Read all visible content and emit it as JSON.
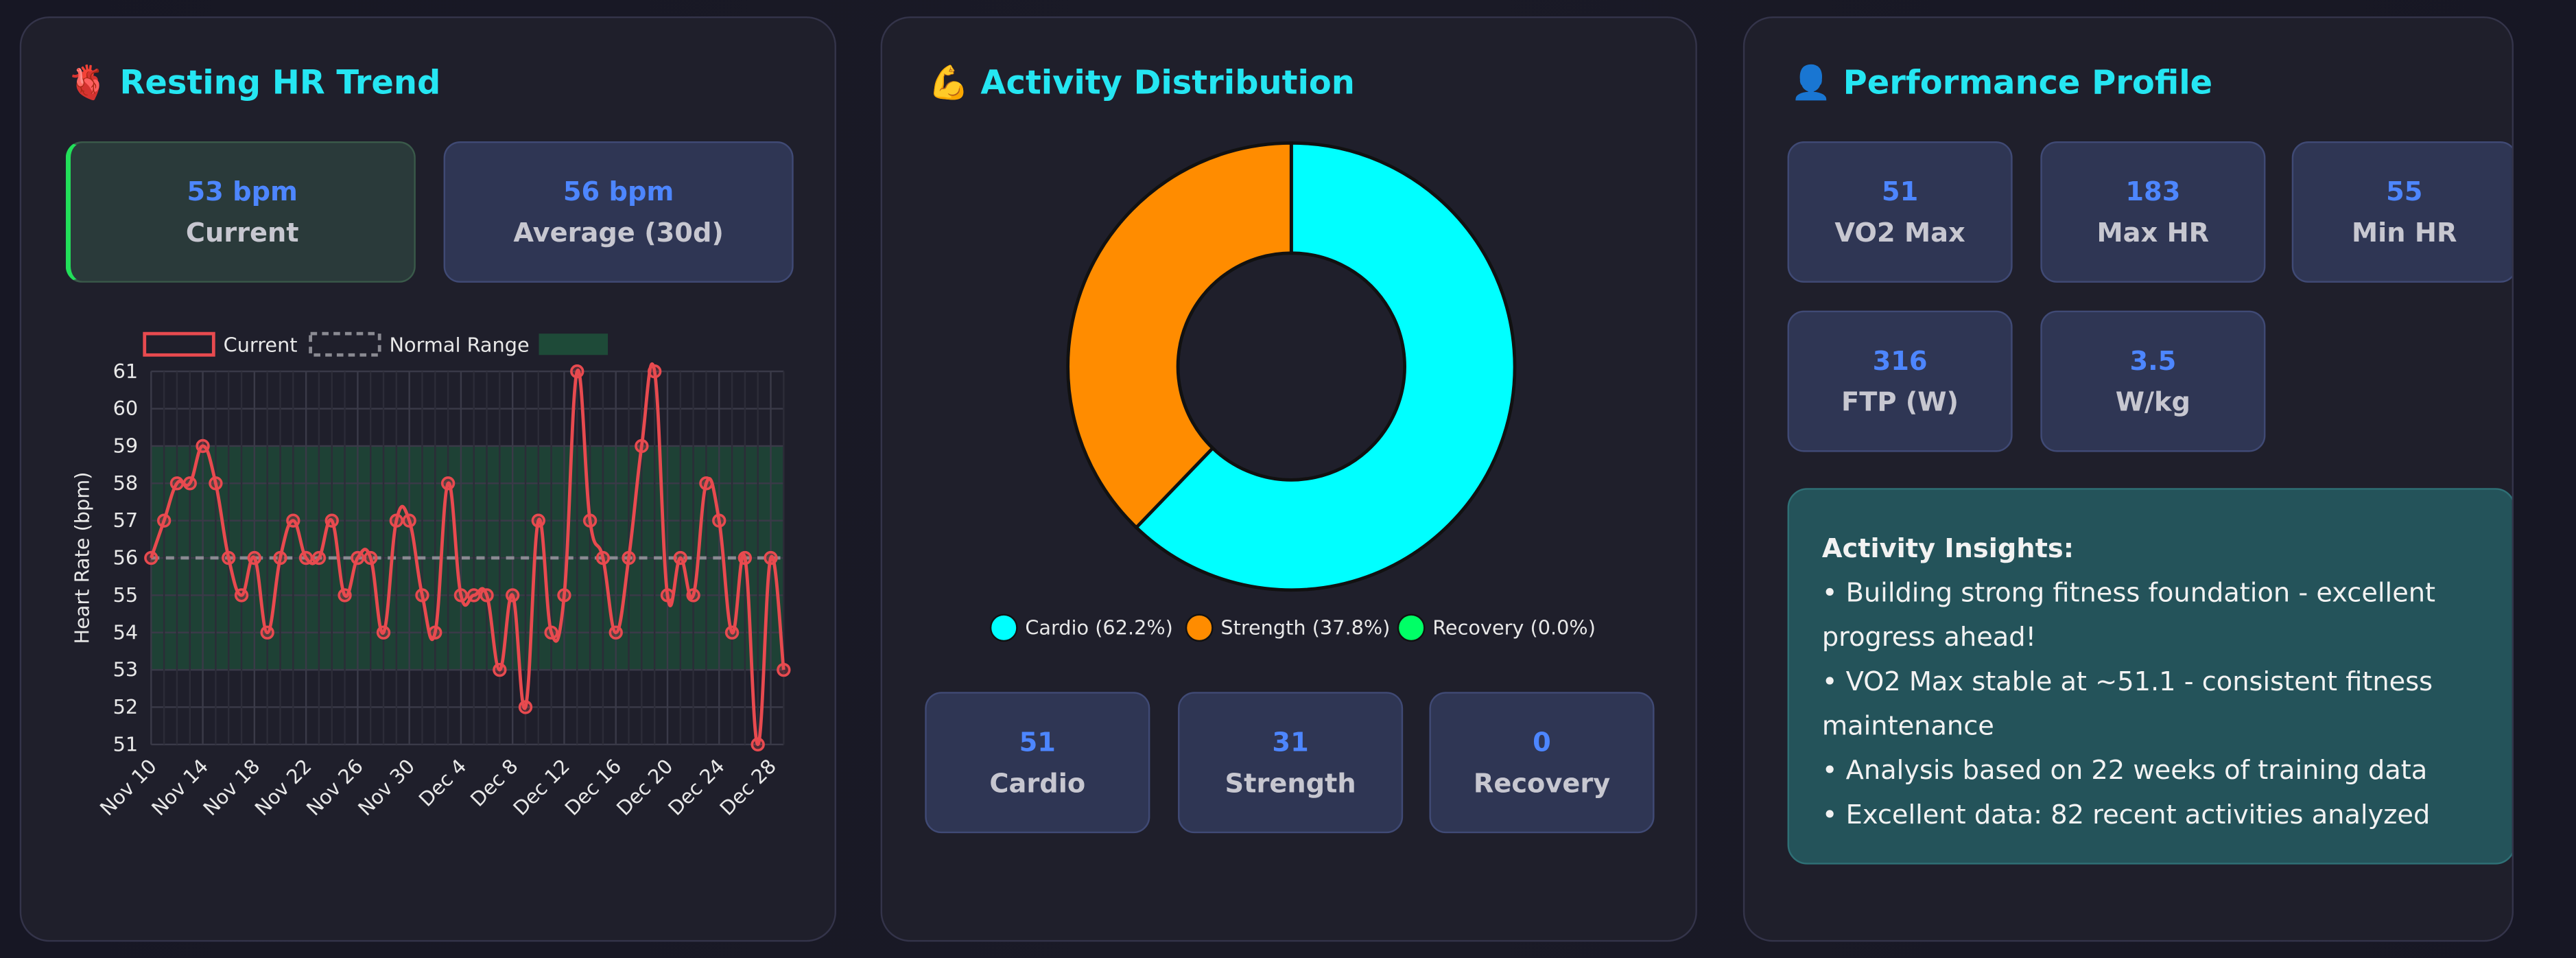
{
  "panels": [
    {
      "title": "🫀 Resting HR Trend",
      "stats": [
        {
          "value": "53 bpm",
          "label": "Current"
        },
        {
          "value": "56 bpm",
          "label": "Average (30d)"
        }
      ]
    },
    {
      "title": "💪 Activity Distribution",
      "stats": [
        {
          "value": "51",
          "label": "Cardio"
        },
        {
          "value": "31",
          "label": "Strength"
        },
        {
          "value": "0",
          "label": "Recovery"
        }
      ]
    },
    {
      "title": "👤 Performance Profile",
      "stats": [
        {
          "value": "51",
          "label": "VO2 Max"
        },
        {
          "value": "183",
          "label": "Max HR"
        },
        {
          "value": "55",
          "label": "Min HR"
        },
        {
          "value": "316",
          "label": "FTP (W)"
        },
        {
          "value": "3.5",
          "label": "W/kg"
        }
      ],
      "insights": {
        "title": "Activity Insights:",
        "items": [
          "• Building strong fitness foundation - excellent progress ahead!",
          "• VO2 Max stable at ~51.1 - consistent fitness maintenance",
          "• Analysis based on 22 weeks of training data",
          "• Excellent data: 82 recent activities analyzed"
        ]
      }
    }
  ],
  "chart_data": [
    {
      "type": "line",
      "y_label": "Heart Rate (bpm)",
      "categories": [
        "Nov 10",
        null,
        null,
        null,
        "Nov 14",
        null,
        null,
        null,
        "Nov 18",
        null,
        null,
        null,
        "Nov 22",
        null,
        null,
        null,
        "Nov 26",
        null,
        null,
        null,
        "Nov 30",
        null,
        null,
        null,
        "Dec 4",
        null,
        null,
        null,
        "Dec 8",
        null,
        null,
        null,
        "Dec 12",
        null,
        null,
        null,
        "Dec 16",
        null,
        null,
        null,
        "Dec 20",
        null,
        null,
        null,
        "Dec 24",
        null,
        null,
        null,
        "Dec 28",
        null
      ],
      "series": [
        {
          "name": "Current",
          "color": "#e84a4f",
          "values": [
            56,
            57,
            58,
            58,
            59,
            58,
            56,
            55,
            56,
            54,
            56,
            57,
            56,
            56,
            57,
            55,
            56,
            56,
            54,
            57,
            57,
            55,
            54,
            58,
            55,
            55,
            55,
            53,
            55,
            52,
            57,
            54,
            55,
            61,
            57,
            56,
            54,
            56,
            59,
            61,
            55,
            56,
            55,
            58,
            57,
            54,
            56,
            51,
            56,
            53
          ]
        }
      ],
      "reference_line": {
        "name": "Normal Range",
        "value": 56,
        "color": "#8a8a92"
      },
      "band": {
        "low": 53,
        "high": 59,
        "color": "#1e4a38"
      },
      "ylim": [
        51,
        61
      ],
      "yticks": [
        51,
        52,
        53,
        54,
        55,
        56,
        57,
        58,
        59,
        60,
        61
      ],
      "grid": true
    },
    {
      "type": "pie",
      "labels": [
        "Cardio (62.2%)",
        "Strength (37.8%)",
        "Recovery (0.0%)"
      ],
      "values": [
        62.2,
        37.8,
        0.0
      ],
      "colors": [
        "#00ffff",
        "#ff8c00",
        "#00ff66"
      ],
      "donut": true
    }
  ]
}
